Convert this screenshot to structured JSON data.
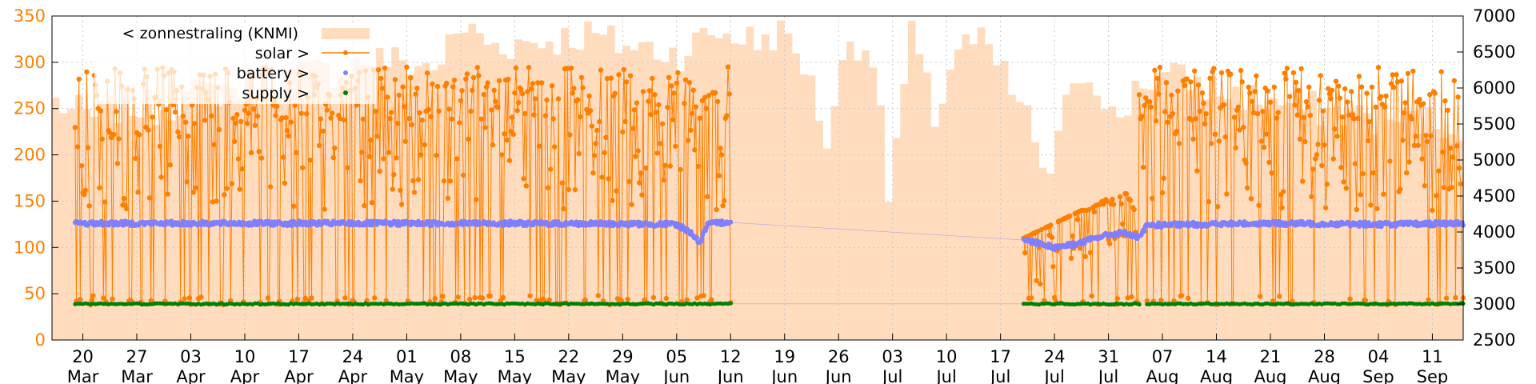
{
  "chart_data": {
    "type": "line",
    "title": "",
    "xlabel": "",
    "ylabel": "",
    "y_left_ticks": [
      "0",
      "50",
      "100",
      "150",
      "200",
      "250",
      "300",
      "350"
    ],
    "y_left_range": [
      0,
      350
    ],
    "y_right_ticks": [
      "2500",
      "3000",
      "3500",
      "4000",
      "4500",
      "5000",
      "5500",
      "6000",
      "6500",
      "7000"
    ],
    "y_right_range": [
      2500,
      7000
    ],
    "x_range": [
      "2023-03-16",
      "2023-09-15"
    ],
    "x_ticks": [
      {
        "date": "2023-03-20",
        "day": "20",
        "month": "Mar"
      },
      {
        "date": "2023-03-27",
        "day": "27",
        "month": "Mar"
      },
      {
        "date": "2023-04-03",
        "day": "03",
        "month": "Apr"
      },
      {
        "date": "2023-04-10",
        "day": "10",
        "month": "Apr"
      },
      {
        "date": "2023-04-17",
        "day": "17",
        "month": "Apr"
      },
      {
        "date": "2023-04-24",
        "day": "24",
        "month": "Apr"
      },
      {
        "date": "2023-05-01",
        "day": "01",
        "month": "May"
      },
      {
        "date": "2023-05-08",
        "day": "08",
        "month": "May"
      },
      {
        "date": "2023-05-15",
        "day": "15",
        "month": "May"
      },
      {
        "date": "2023-05-22",
        "day": "22",
        "month": "May"
      },
      {
        "date": "2023-05-29",
        "day": "29",
        "month": "May"
      },
      {
        "date": "2023-06-05",
        "day": "05",
        "month": "Jun"
      },
      {
        "date": "2023-06-12",
        "day": "12",
        "month": "Jun"
      },
      {
        "date": "2023-06-19",
        "day": "19",
        "month": "Jun"
      },
      {
        "date": "2023-06-26",
        "day": "26",
        "month": "Jun"
      },
      {
        "date": "2023-07-03",
        "day": "03",
        "month": "Jul"
      },
      {
        "date": "2023-07-10",
        "day": "10",
        "month": "Jul"
      },
      {
        "date": "2023-07-17",
        "day": "17",
        "month": "Jul"
      },
      {
        "date": "2023-07-24",
        "day": "24",
        "month": "Jul"
      },
      {
        "date": "2023-07-31",
        "day": "31",
        "month": "Jul"
      },
      {
        "date": "2023-08-07",
        "day": "07",
        "month": "Aug"
      },
      {
        "date": "2023-08-14",
        "day": "14",
        "month": "Aug"
      },
      {
        "date": "2023-08-21",
        "day": "21",
        "month": "Aug"
      },
      {
        "date": "2023-08-28",
        "day": "28",
        "month": "Aug"
      },
      {
        "date": "2023-09-04",
        "day": "04",
        "month": "Sep"
      },
      {
        "date": "2023-09-11",
        "day": "11",
        "month": "Sep"
      }
    ],
    "grid": true,
    "legend_position": "top-left",
    "series": [
      {
        "name": "< zonnestraling (KNMI)",
        "type": "area",
        "axis": "left",
        "color": "#ffdcbe",
        "points": [
          [
            "2023-03-16",
            258
          ],
          [
            "2023-03-18",
            248
          ],
          [
            "2023-03-21",
            240
          ],
          [
            "2023-03-25",
            255
          ],
          [
            "2023-03-29",
            250
          ],
          [
            "2023-04-02",
            262
          ],
          [
            "2023-04-06",
            270
          ],
          [
            "2023-04-10",
            275
          ],
          [
            "2023-04-14",
            282
          ],
          [
            "2023-04-18",
            288
          ],
          [
            "2023-04-22",
            292
          ],
          [
            "2023-04-26",
            305
          ],
          [
            "2023-04-30",
            300
          ],
          [
            "2023-05-04",
            295
          ],
          [
            "2023-05-08",
            338
          ],
          [
            "2023-05-12",
            318
          ],
          [
            "2023-05-16",
            322
          ],
          [
            "2023-05-20",
            325
          ],
          [
            "2023-05-24",
            330
          ],
          [
            "2023-05-28",
            320
          ],
          [
            "2023-06-01",
            315
          ],
          [
            "2023-06-05",
            310
          ],
          [
            "2023-06-09",
            332
          ],
          [
            "2023-06-12",
            330
          ],
          [
            "2023-06-15",
            322
          ],
          [
            "2023-06-18",
            335
          ],
          [
            "2023-06-21",
            300
          ],
          [
            "2023-06-24",
            218
          ],
          [
            "2023-06-27",
            328
          ],
          [
            "2023-06-30",
            310
          ],
          [
            "2023-07-02",
            158
          ],
          [
            "2023-07-05",
            330
          ],
          [
            "2023-07-08",
            240
          ],
          [
            "2023-07-11",
            318
          ],
          [
            "2023-07-14",
            320
          ],
          [
            "2023-07-17",
            285
          ],
          [
            "2023-07-20",
            238
          ],
          [
            "2023-07-23",
            170
          ],
          [
            "2023-07-26",
            290
          ],
          [
            "2023-07-29",
            282
          ],
          [
            "2023-08-01",
            228
          ],
          [
            "2023-08-03",
            278
          ],
          [
            "2023-08-06",
            285
          ],
          [
            "2023-08-10",
            280
          ],
          [
            "2023-08-14",
            270
          ],
          [
            "2023-08-18",
            262
          ],
          [
            "2023-08-22",
            255
          ],
          [
            "2023-08-26",
            250
          ],
          [
            "2023-08-30",
            245
          ],
          [
            "2023-09-03",
            240
          ],
          [
            "2023-09-07",
            238
          ],
          [
            "2023-09-11",
            235
          ],
          [
            "2023-09-15",
            232
          ]
        ]
      },
      {
        "name": "solar >",
        "type": "line",
        "axis": "left",
        "color": "#ff7f00",
        "range": [
          "2023-03-19",
          "2023-09-15"
        ],
        "gap": [
          "2023-06-12",
          "2023-07-20"
        ],
        "typical_range": [
          38,
          295
        ],
        "jul_range": [
          38,
          190
        ]
      },
      {
        "name": "battery >",
        "type": "scatter",
        "axis": "left",
        "color": "#7f7fff",
        "points": [
          [
            "2023-03-19",
            126
          ],
          [
            "2023-04-15",
            126
          ],
          [
            "2023-05-15",
            126
          ],
          [
            "2023-06-05",
            125
          ],
          [
            "2023-06-07",
            115
          ],
          [
            "2023-06-08",
            105
          ],
          [
            "2023-06-09",
            125
          ],
          [
            "2023-06-12",
            128
          ],
          [
            "2023-07-20",
            108
          ],
          [
            "2023-07-22",
            105
          ],
          [
            "2023-07-24",
            100
          ],
          [
            "2023-07-27",
            104
          ],
          [
            "2023-07-30",
            112
          ],
          [
            "2023-08-02",
            116
          ],
          [
            "2023-08-04",
            110
          ],
          [
            "2023-08-05",
            124
          ],
          [
            "2023-08-20",
            126
          ],
          [
            "2023-09-05",
            125
          ],
          [
            "2023-09-15",
            126
          ]
        ]
      },
      {
        "name": "supply >",
        "type": "scatter",
        "axis": "left",
        "color": "#007f00",
        "segments": [
          [
            "2023-03-19",
            "2023-06-12"
          ],
          [
            "2023-07-20",
            "2023-08-04"
          ],
          [
            "2023-08-05",
            "2023-09-15"
          ]
        ],
        "value": 39
      }
    ]
  }
}
